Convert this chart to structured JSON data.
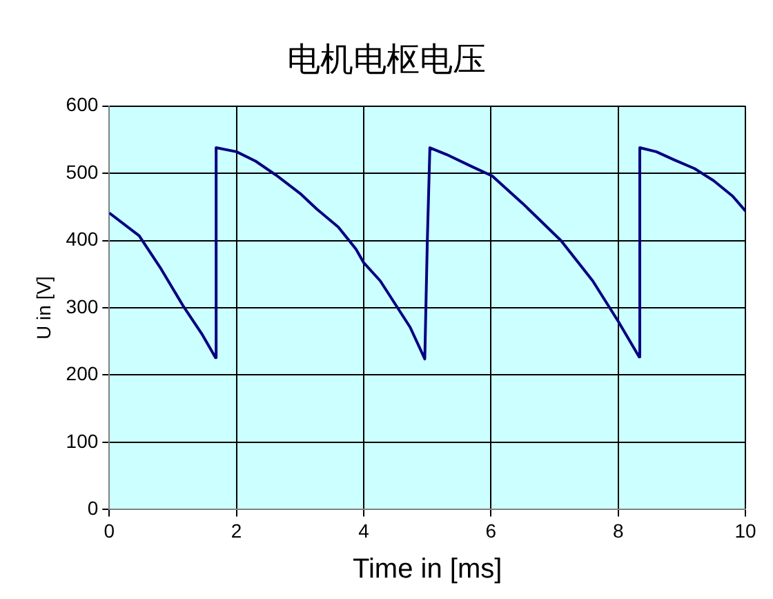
{
  "chart_data": {
    "type": "line",
    "title": "电机电枢电压",
    "xlabel": "Time in [ms]",
    "ylabel": "U in [V]",
    "xlim": [
      0,
      10
    ],
    "xticks": [
      0,
      2,
      4,
      6,
      8,
      10
    ],
    "ylim": [
      0,
      600
    ],
    "yticks": [
      0,
      100,
      200,
      300,
      400,
      500,
      600
    ],
    "grid": true,
    "legend": false,
    "marker": "none",
    "line_style": "solid",
    "series": [
      {
        "color": "#000080",
        "x": [
          0,
          0.47,
          0.8,
          1.16,
          1.45,
          1.67,
          1.68,
          2.0,
          2.3,
          2.64,
          3.0,
          3.26,
          3.6,
          3.88,
          4.0,
          4.26,
          4.73,
          4.96,
          5.0,
          5.04,
          5.3,
          5.7,
          6.02,
          6.5,
          7.1,
          7.6,
          8.0,
          8.33,
          8.34,
          8.6,
          8.88,
          9.2,
          9.5,
          9.8,
          10.0
        ],
        "values": [
          441,
          407,
          360,
          303,
          262,
          226,
          538,
          532,
          518,
          496,
          470,
          447,
          420,
          387,
          367,
          340,
          271,
          224,
          400,
          538,
          528,
          510,
          496,
          455,
          400,
          340,
          280,
          227,
          538,
          532,
          520,
          507,
          489,
          466,
          444
        ]
      }
    ]
  }
}
